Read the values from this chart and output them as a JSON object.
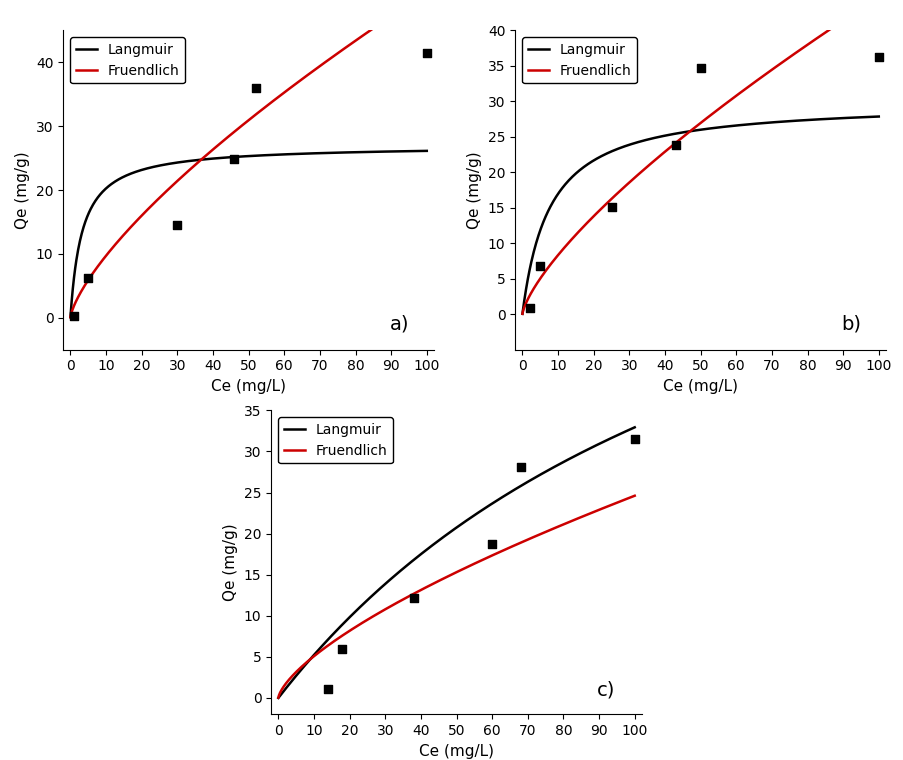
{
  "subplot_a": {
    "label": "a)",
    "scatter_x": [
      1,
      5,
      30,
      46,
      52,
      100
    ],
    "scatter_y": [
      0.3,
      6.2,
      14.5,
      24.8,
      36.0,
      41.5
    ],
    "langmuir_params": {
      "qmax": 27.0,
      "KL": 0.3
    },
    "freundlich_params": {
      "KF": 1.85,
      "n": 0.72
    },
    "xlim": [
      -2,
      102
    ],
    "ylim": [
      -5,
      45
    ],
    "xticks": [
      0,
      10,
      20,
      30,
      40,
      50,
      60,
      70,
      80,
      90,
      100
    ],
    "yticks": [
      0,
      10,
      20,
      30,
      40
    ]
  },
  "subplot_b": {
    "label": "b)",
    "scatter_x": [
      2,
      5,
      25,
      43,
      50,
      100
    ],
    "scatter_y": [
      0.9,
      6.8,
      15.1,
      23.8,
      34.7,
      36.2
    ],
    "langmuir_params": {
      "qmax": 30.0,
      "KL": 0.13
    },
    "freundlich_params": {
      "KF": 1.55,
      "n": 0.73
    },
    "xlim": [
      -2,
      102
    ],
    "ylim": [
      -5,
      40
    ],
    "xticks": [
      0,
      10,
      20,
      30,
      40,
      50,
      60,
      70,
      80,
      90,
      100
    ],
    "yticks": [
      0,
      5,
      10,
      15,
      20,
      25,
      30,
      35,
      40
    ]
  },
  "subplot_c": {
    "label": "c)",
    "scatter_x": [
      14,
      18,
      38,
      60,
      68,
      100
    ],
    "scatter_y": [
      1.1,
      5.9,
      12.2,
      18.7,
      28.1,
      31.5
    ],
    "langmuir_params": {
      "qmax": 80.0,
      "KL": 0.007
    },
    "freundlich_params": {
      "KF": 1.05,
      "n": 0.685
    },
    "xlim": [
      -2,
      102
    ],
    "ylim": [
      -2,
      35
    ],
    "xticks": [
      0,
      10,
      20,
      30,
      40,
      50,
      60,
      70,
      80,
      90,
      100
    ],
    "yticks": [
      0,
      5,
      10,
      15,
      20,
      25,
      30,
      35
    ]
  },
  "langmuir_color": "#000000",
  "freundlich_color": "#cc0000",
  "scatter_color": "#000000",
  "scatter_marker": "s",
  "scatter_size": 28,
  "line_width": 1.8,
  "xlabel": "Ce (mg/L)",
  "ylabel": "Qe (mg/g)",
  "legend_langmuir": "Langmuir",
  "legend_freundlich": "Fruendlich",
  "font_size": 10,
  "label_font_size": 11,
  "tick_font_size": 10
}
